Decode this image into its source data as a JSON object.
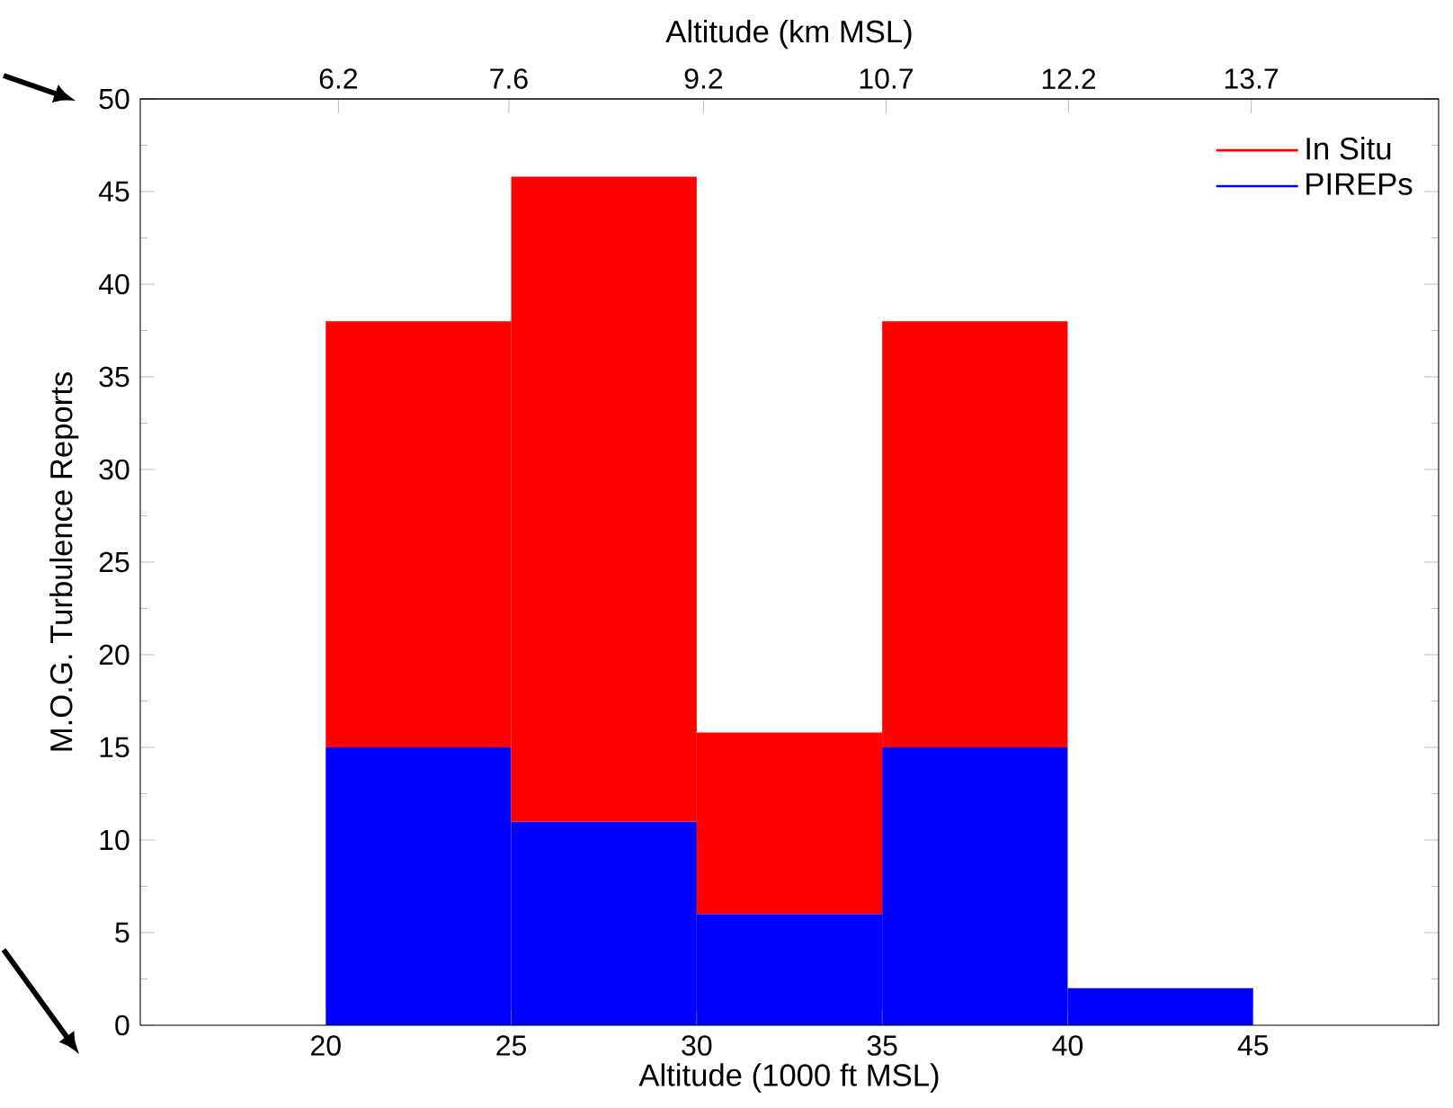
{
  "chart_data": {
    "type": "bar",
    "xlabel": "Altitude (1000 ft MSL)",
    "x2label": "Altitude (km MSL)",
    "ylabel": "M.O.G. Turbulence Reports",
    "x": [
      22.5,
      27.5,
      32.5,
      37.5,
      42.5
    ],
    "series": [
      {
        "name": "PIREPs",
        "color": "#0000ff",
        "values": [
          15,
          11,
          6,
          15,
          2
        ]
      },
      {
        "name": "In Situ",
        "color": "#ff0000",
        "values": [
          23,
          34.8,
          9.8,
          23,
          null
        ]
      }
    ],
    "xlim": [
      15,
      50
    ],
    "xticks": [
      20,
      25,
      30,
      35,
      40,
      45
    ],
    "x2lim": [
      4.572,
      15.24
    ],
    "x2ticks": [
      6.2,
      7.6,
      9.2,
      10.7,
      12.2,
      13.7
    ],
    "stacked": true,
    "ylim": [
      0,
      50
    ],
    "yticks": [
      0,
      5,
      10,
      15,
      20,
      25,
      30,
      35,
      40,
      45,
      50
    ],
    "legend": "top right",
    "grid": false
  }
}
